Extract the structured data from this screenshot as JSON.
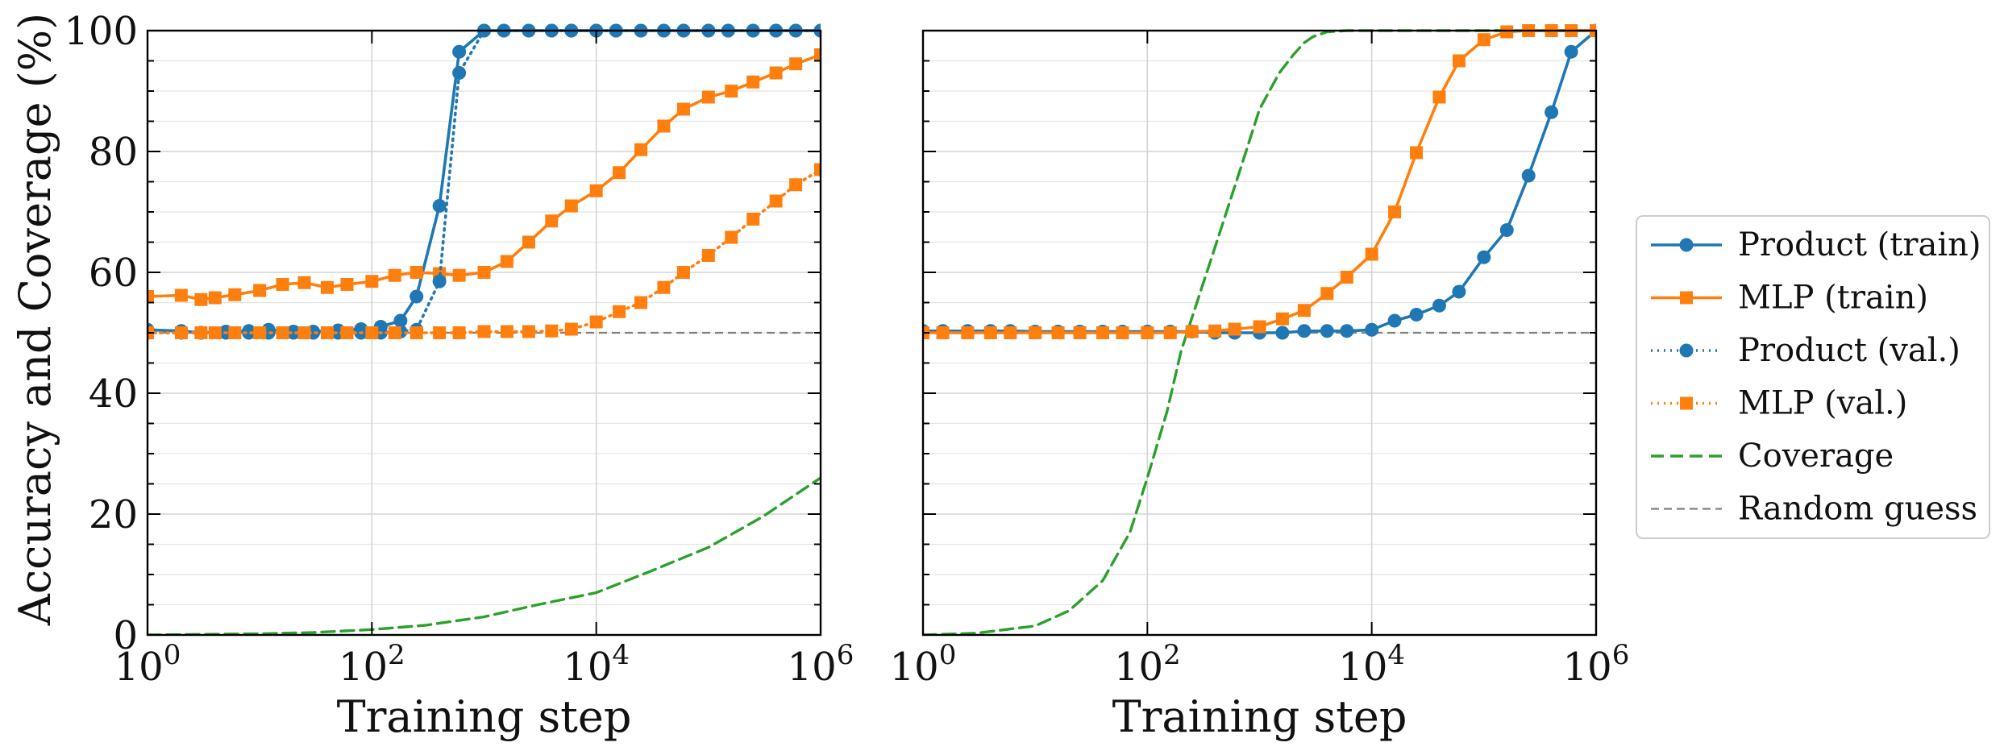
{
  "chart_data": [
    {
      "type": "line",
      "xscale": "log",
      "xlim": [
        1,
        1000000
      ],
      "ylim": [
        0,
        100
      ],
      "xlabel": "Training step",
      "ylabel": "Accuracy and Coverage (%)",
      "xticks": [
        {
          "value": 1,
          "base": "10",
          "exp": "0"
        },
        {
          "value": 100,
          "base": "10",
          "exp": "2"
        },
        {
          "value": 10000,
          "base": "10",
          "exp": "4"
        },
        {
          "value": 1000000,
          "base": "10",
          "exp": "6"
        }
      ],
      "yticks": [
        0,
        20,
        40,
        60,
        80,
        100
      ],
      "grid": true,
      "series": [
        {
          "name": "Product (train)",
          "color": "#1f77b4",
          "dash": "solid",
          "marker": "circle",
          "x": [
            1,
            2,
            3,
            5,
            8,
            12,
            20,
            30,
            50,
            80,
            120,
            180,
            250,
            400,
            600,
            1000,
            1500,
            2500,
            4000,
            6000,
            10000,
            15000,
            25000,
            40000,
            60000,
            100000,
            150000,
            250000,
            400000,
            600000,
            1000000
          ],
          "y": [
            50.5,
            50.3,
            50.0,
            50.2,
            50.3,
            50.5,
            50.2,
            50.2,
            50.4,
            50.6,
            51.0,
            52.0,
            56.0,
            71.0,
            96.5,
            100,
            100,
            100,
            100,
            100,
            100,
            100,
            100,
            100,
            100,
            100,
            100,
            100,
            100,
            100,
            100
          ]
        },
        {
          "name": "MLP (train)",
          "color": "#ff7f0e",
          "dash": "solid",
          "marker": "square",
          "x": [
            1,
            2,
            3,
            4,
            6,
            10,
            16,
            25,
            40,
            60,
            100,
            160,
            250,
            400,
            600,
            1000,
            1600,
            2500,
            4000,
            6000,
            10000,
            16000,
            25000,
            40000,
            60000,
            100000,
            160000,
            250000,
            400000,
            600000,
            1000000
          ],
          "y": [
            56.0,
            56.2,
            55.5,
            55.8,
            56.3,
            57.0,
            58.0,
            58.3,
            57.5,
            58.0,
            58.5,
            59.5,
            60.0,
            59.8,
            59.5,
            60.0,
            61.8,
            65.0,
            68.5,
            71.0,
            73.5,
            76.5,
            80.3,
            84.2,
            87.0,
            89.0,
            90.0,
            91.5,
            93.0,
            94.5,
            96.0
          ]
        },
        {
          "name": "Product (val.)",
          "color": "#1f77b4",
          "dash": "dotted",
          "marker": "circle",
          "x": [
            1,
            2,
            3,
            5,
            8,
            12,
            20,
            30,
            50,
            80,
            120,
            180,
            250,
            400,
            600,
            1000,
            1500,
            2500,
            4000,
            6000,
            10000,
            15000,
            25000,
            40000,
            60000,
            100000,
            150000,
            250000,
            400000,
            600000,
            1000000
          ],
          "y": [
            50.0,
            50.0,
            50.0,
            50.0,
            50.0,
            50.0,
            50.0,
            50.0,
            50.0,
            50.0,
            50.0,
            50.2,
            50.5,
            58.5,
            93.0,
            100,
            100,
            100,
            100,
            100,
            100,
            100,
            100,
            100,
            100,
            100,
            100,
            100,
            100,
            100,
            100
          ]
        },
        {
          "name": "MLP (val.)",
          "color": "#ff7f0e",
          "dash": "dotted",
          "marker": "square",
          "x": [
            1,
            2,
            3,
            4,
            6,
            10,
            16,
            25,
            40,
            60,
            100,
            160,
            250,
            400,
            600,
            1000,
            1600,
            2500,
            4000,
            6000,
            10000,
            16000,
            25000,
            40000,
            60000,
            100000,
            160000,
            250000,
            400000,
            600000,
            1000000
          ],
          "y": [
            50.0,
            50.0,
            50.0,
            50.0,
            50.0,
            50.0,
            50.0,
            50.0,
            50.0,
            50.0,
            50.0,
            50.0,
            50.0,
            50.0,
            50.0,
            50.2,
            50.2,
            50.2,
            50.3,
            50.6,
            51.8,
            53.5,
            55.0,
            57.5,
            60.0,
            62.8,
            65.8,
            68.8,
            71.8,
            74.5,
            77.0
          ]
        },
        {
          "name": "Coverage",
          "color": "#2ca02c",
          "dash": "dashed",
          "marker": "none",
          "x": [
            1,
            10,
            30,
            100,
            300,
            1000,
            3000,
            10000,
            30000,
            100000,
            300000,
            1000000
          ],
          "y": [
            0,
            0.2,
            0.4,
            0.9,
            1.6,
            3.0,
            5.0,
            7.0,
            10.5,
            14.5,
            19.5,
            26.0
          ]
        }
      ],
      "random_guess": {
        "name": "Random guess",
        "y": 50,
        "color": "#808080"
      }
    },
    {
      "type": "line",
      "xscale": "log",
      "xlim": [
        1,
        1000000
      ],
      "ylim": [
        0,
        100
      ],
      "xlabel": "Training step",
      "ylabel": "",
      "xticks": [
        {
          "value": 1,
          "base": "10",
          "exp": "0"
        },
        {
          "value": 100,
          "base": "10",
          "exp": "2"
        },
        {
          "value": 10000,
          "base": "10",
          "exp": "4"
        },
        {
          "value": 1000000,
          "base": "10",
          "exp": "6"
        }
      ],
      "yticks": [
        0,
        20,
        40,
        60,
        80,
        100
      ],
      "show_ytick_labels": false,
      "grid": true,
      "series": [
        {
          "name": "Product (train)",
          "color": "#1f77b4",
          "dash": "solid",
          "marker": "circle",
          "x": [
            1,
            1.5,
            2.5,
            4,
            6,
            10,
            16,
            25,
            40,
            60,
            100,
            160,
            250,
            400,
            600,
            1000,
            1600,
            2500,
            4000,
            6000,
            10000,
            16000,
            25000,
            40000,
            60000,
            100000,
            160000,
            250000,
            400000,
            600000,
            1000000
          ],
          "y": [
            50.3,
            50.3,
            50.3,
            50.3,
            50.3,
            50.2,
            50.2,
            50.2,
            50.2,
            50.2,
            50.2,
            50.2,
            50.2,
            50.0,
            50.0,
            50.0,
            50.0,
            50.3,
            50.3,
            50.3,
            50.5,
            52.0,
            53.0,
            54.5,
            56.8,
            62.5,
            67.0,
            76.0,
            86.5,
            96.5,
            100
          ]
        },
        {
          "name": "MLP (train)",
          "color": "#ff7f0e",
          "dash": "solid",
          "marker": "square",
          "x": [
            1,
            1.5,
            2.5,
            4,
            6,
            10,
            16,
            25,
            40,
            60,
            100,
            160,
            250,
            400,
            600,
            1000,
            1600,
            2500,
            4000,
            6000,
            10000,
            16000,
            25000,
            40000,
            60000,
            100000,
            160000,
            250000,
            400000,
            600000,
            1000000
          ],
          "y": [
            50.0,
            50.0,
            50.0,
            50.0,
            50.0,
            50.0,
            50.0,
            50.0,
            50.0,
            50.0,
            50.0,
            50.0,
            50.2,
            50.3,
            50.6,
            51.0,
            52.3,
            53.7,
            56.5,
            59.2,
            63.0,
            70.0,
            79.8,
            89.0,
            95.0,
            98.5,
            99.8,
            100,
            100,
            100,
            100
          ]
        },
        {
          "name": "Product (val.)",
          "color": "#1f77b4",
          "dash": "dotted",
          "marker": "circle",
          "x": [],
          "y": []
        },
        {
          "name": "MLP (val.)",
          "color": "#ff7f0e",
          "dash": "dotted",
          "marker": "square",
          "x": [],
          "y": []
        },
        {
          "name": "Coverage",
          "color": "#2ca02c",
          "dash": "dashed",
          "marker": "none",
          "x": [
            1,
            3,
            10,
            20,
            40,
            70,
            100,
            150,
            200,
            300,
            450,
            700,
            1000,
            1500,
            2000,
            2500,
            3000,
            4000,
            6000,
            10000,
            100000,
            1000000
          ],
          "y": [
            0,
            0.3,
            1.5,
            4,
            9,
            17,
            26,
            37,
            47,
            57,
            67,
            78,
            87,
            93,
            96,
            98,
            99,
            99.8,
            100,
            100,
            100,
            100
          ]
        }
      ],
      "random_guess": {
        "name": "Random guess",
        "y": 50,
        "color": "#808080"
      }
    }
  ],
  "legend": {
    "position": "right",
    "entries": [
      {
        "label": "Product (train)",
        "color": "#1f77b4",
        "dash": "solid",
        "marker": "circle"
      },
      {
        "label": "MLP (train)",
        "color": "#ff7f0e",
        "dash": "solid",
        "marker": "square"
      },
      {
        "label": "Product (val.)",
        "color": "#1f77b4",
        "dash": "dotted",
        "marker": "circle"
      },
      {
        "label": "MLP (val.)",
        "color": "#ff7f0e",
        "dash": "dotted",
        "marker": "square"
      },
      {
        "label": "Coverage",
        "color": "#2ca02c",
        "dash": "dashed",
        "marker": "none"
      },
      {
        "label": "Random guess",
        "color": "#808080",
        "dash": "thin-dashed",
        "marker": "none"
      }
    ]
  }
}
